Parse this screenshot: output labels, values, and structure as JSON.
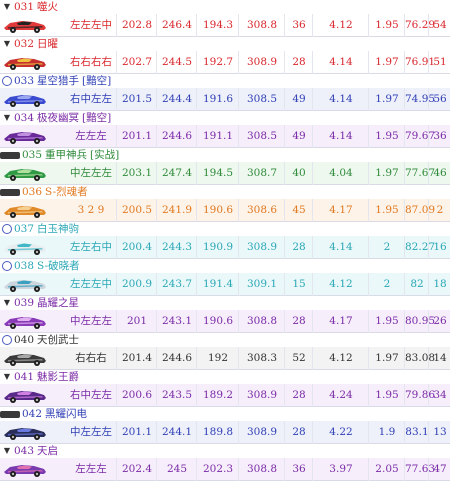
{
  "rows": [
    {
      "num": "031",
      "name": "噬火",
      "mark": "tri",
      "color": "#d9262b",
      "bg": "#ffffff",
      "values": [
        "左左左中",
        "202.8",
        "246.4",
        "194.3",
        "308.8",
        "36",
        "4.12",
        "1.95",
        "76.29",
        "54"
      ],
      "car": {
        "body": "#e23a3a",
        "accent": "#222222"
      }
    },
    {
      "num": "032",
      "name": "日曜",
      "mark": "tri",
      "color": "#d9262b",
      "bg": "#ffffff",
      "values": [
        "右右右右",
        "202.7",
        "244.5",
        "192.7",
        "308.9",
        "28",
        "4.14",
        "1.97",
        "76.91",
        "51"
      ],
      "car": {
        "body": "#c62f2f",
        "accent": "#f0c040"
      }
    },
    {
      "num": "033",
      "name": "星空猎手",
      "tag": "[黯空]",
      "mark": "ring",
      "color": "#2f3fb5",
      "bg": "#eef0fa",
      "values": [
        "右中左左",
        "201.5",
        "244.4",
        "191.6",
        "308.5",
        "49",
        "4.14",
        "1.97",
        "74.95",
        "56"
      ],
      "car": {
        "body": "#3b4bd0",
        "accent": "#9aa6ef"
      }
    },
    {
      "num": "034",
      "name": "极夜幽冥",
      "tag": "[黯空]",
      "mark": "tri",
      "color": "#7a2aa6",
      "bg": "#f6eefb",
      "values": [
        "左左左",
        "201.1",
        "244.6",
        "191.1",
        "308.5",
        "49",
        "4.14",
        "1.95",
        "79.67",
        "36"
      ],
      "car": {
        "body": "#6a2a9a",
        "accent": "#c090e0"
      }
    },
    {
      "num": "035",
      "name": "重甲神兵",
      "tag": "[实战]",
      "mark": "badge",
      "color": "#2e8a3a",
      "bg": "#eef8ee",
      "values": [
        "中左左左",
        "203.1",
        "247.4",
        "194.5",
        "308.7",
        "40",
        "4.04",
        "1.97",
        "77.67",
        "46"
      ],
      "car": {
        "body": "#2f9a45",
        "accent": "#b0e0a0"
      }
    },
    {
      "num": "036",
      "name": "S-烈魂者",
      "mark": "badge",
      "color": "#e07820",
      "bg": "#fdf3e8",
      "values": [
        "3 2 9",
        "200.5",
        "241.9",
        "190.6",
        "308.6",
        "45",
        "4.17",
        "1.95",
        "87.09",
        "2"
      ],
      "car": {
        "body": "#e08a2a",
        "accent": "#f5d090"
      }
    },
    {
      "num": "037",
      "name": "白玉神驹",
      "mark": "ring",
      "color": "#2aa7b5",
      "bg": "#eaf8fa",
      "values": [
        "左左右中",
        "200.4",
        "244.3",
        "190.9",
        "308.9",
        "28",
        "4.14",
        "2",
        "82.27",
        "16"
      ],
      "car": {
        "body": "#e8eef0",
        "accent": "#40b8c8"
      }
    },
    {
      "num": "038",
      "name": "S-破晓者",
      "mark": "ring",
      "color": "#2aa7b5",
      "bg": "#eaf8fa",
      "values": [
        "左左左中",
        "200.9",
        "243.7",
        "191.4",
        "309.1",
        "15",
        "4.12",
        "2",
        "82",
        "18"
      ],
      "car": {
        "body": "#ccd6dc",
        "accent": "#3aa0c0"
      }
    },
    {
      "num": "039",
      "name": "晶耀之星",
      "mark": "tri",
      "color": "#7a2aa6",
      "bg": "#f6eefb",
      "values": [
        "中左左左",
        "201",
        "243.1",
        "190.6",
        "308.8",
        "28",
        "4.17",
        "1.95",
        "80.95",
        "26"
      ],
      "car": {
        "body": "#8a3ab8",
        "accent": "#e0b0f0"
      }
    },
    {
      "num": "040",
      "name": "天创武士",
      "mark": "ring",
      "color": "#333333",
      "bg": "#f3f3f3",
      "values": [
        "右右右",
        "201.4",
        "244.6",
        "192",
        "308.3",
        "52",
        "4.12",
        "1.97",
        "83.08",
        "14"
      ],
      "car": {
        "body": "#3a3a3a",
        "accent": "#a8a8a8"
      }
    },
    {
      "num": "041",
      "name": "魅影王爵",
      "mark": "tri",
      "color": "#7a2aa6",
      "bg": "#f6eefb",
      "values": [
        "右中左左",
        "200.6",
        "243.5",
        "189.2",
        "308.9",
        "28",
        "4.24",
        "1.95",
        "79.86",
        "34"
      ],
      "car": {
        "body": "#5a2a8a",
        "accent": "#d080e0"
      }
    },
    {
      "num": "042",
      "name": "黑耀闪电",
      "mark": "badge",
      "color": "#2f3fb5",
      "bg": "#eef0fa",
      "values": [
        "中左左左",
        "201.1",
        "244.1",
        "189.8",
        "308.9",
        "28",
        "4.22",
        "1.9",
        "83.1",
        "13"
      ],
      "car": {
        "body": "#2a2f5a",
        "accent": "#6a7ae0"
      }
    },
    {
      "num": "043",
      "name": "天启",
      "mark": "tri",
      "color": "#7a2aa6",
      "bg": "#f6eefb",
      "values": [
        "左左左",
        "202.4",
        "245",
        "202.3",
        "308.8",
        "36",
        "3.97",
        "2.05",
        "77.63",
        "47"
      ],
      "car": {
        "body": "#7a3ab0",
        "accent": "#e070b0"
      }
    }
  ]
}
